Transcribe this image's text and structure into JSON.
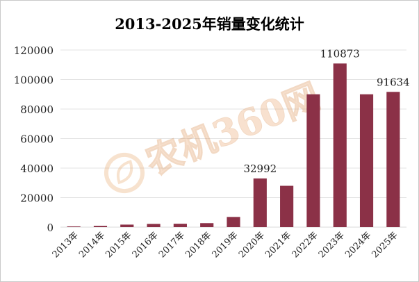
{
  "chart_data": {
    "type": "bar",
    "title": "2013-2025年销量变化统计",
    "categories": [
      "2013年",
      "2014年",
      "2015年",
      "2016年",
      "2017年",
      "2018年",
      "2019年",
      "2020年",
      "2021年",
      "2022年",
      "2023年",
      "2024年",
      "2025年"
    ],
    "values": [
      500,
      900,
      1700,
      2200,
      2300,
      2700,
      6900,
      32992,
      28000,
      90000,
      110873,
      90000,
      91634
    ],
    "data_labels": [
      "",
      "",
      "",
      "",
      "",
      "",
      "",
      "32992",
      "",
      "",
      "110873",
      "",
      "91634"
    ],
    "ylim": [
      0,
      120000
    ],
    "yticks": [
      0,
      20000,
      40000,
      60000,
      80000,
      100000,
      120000
    ],
    "ytick_labels": [
      "0",
      "20000",
      "40000",
      "60000",
      "80000",
      "100000",
      "120000"
    ],
    "xlabel": "",
    "ylabel": "",
    "grid": true,
    "bar_color": "#8b3147",
    "gridline_color": "#e3e3e3"
  },
  "watermark": {
    "text": "农机360网"
  }
}
